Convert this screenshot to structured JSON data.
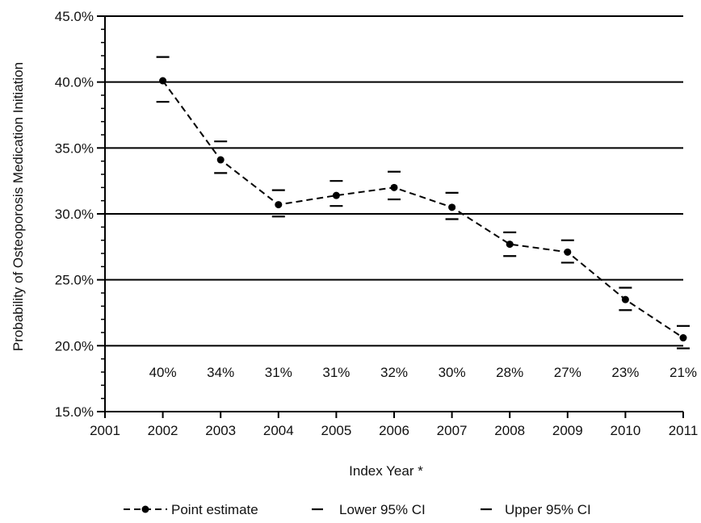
{
  "chart_data": {
    "type": "line",
    "xlabel": "Index Year *",
    "ylabel": "Probability of Osteoporosis Medication Initiation",
    "xlim": [
      2001,
      2011
    ],
    "ylim": [
      15,
      45
    ],
    "y_ticks": [
      "15.0%",
      "20.0%",
      "25.0%",
      "30.0%",
      "35.0%",
      "40.0%",
      "45.0%"
    ],
    "y_tick_values": [
      15,
      20,
      25,
      30,
      35,
      40,
      45
    ],
    "x_ticks": [
      "2001",
      "2002",
      "2003",
      "2004",
      "2005",
      "2006",
      "2007",
      "2008",
      "2009",
      "2010",
      "2011"
    ],
    "x_tick_values": [
      2001,
      2002,
      2003,
      2004,
      2005,
      2006,
      2007,
      2008,
      2009,
      2010,
      2011
    ],
    "grid": "horizontal",
    "legend_position": "bottom",
    "x": [
      2002,
      2003,
      2004,
      2005,
      2006,
      2007,
      2008,
      2009,
      2010,
      2011
    ],
    "data_labels": [
      "40%",
      "34%",
      "31%",
      "31%",
      "32%",
      "30%",
      "28%",
      "27%",
      "23%",
      "21%"
    ],
    "series": [
      {
        "name": "Point estimate",
        "values": [
          40.1,
          34.1,
          30.7,
          31.4,
          32.0,
          30.5,
          27.7,
          27.1,
          23.5,
          20.6
        ]
      },
      {
        "name": "Lower 95% CI",
        "values": [
          38.5,
          33.1,
          29.8,
          30.6,
          31.1,
          29.6,
          26.8,
          26.3,
          22.7,
          19.8
        ]
      },
      {
        "name": "Upper 95% CI",
        "values": [
          41.9,
          35.5,
          31.8,
          32.5,
          33.2,
          31.6,
          28.6,
          28.0,
          24.4,
          21.5
        ]
      }
    ]
  }
}
